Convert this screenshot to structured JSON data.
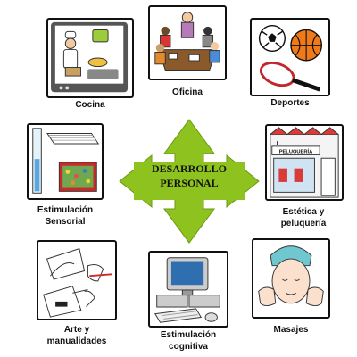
{
  "center": {
    "line1": "DESARROLLO",
    "line2": "PERSONAL",
    "arrow_color": "#8dc21f"
  },
  "areas": {
    "cocina": "Cocina",
    "oficina": "Oficina",
    "deportes": "Deportes",
    "estimulacion_sensorial": {
      "line1": "Estimulación",
      "line2": "Sensorial"
    },
    "estetica": {
      "line1": "Estética y",
      "line2": "peluquería",
      "sign": "PELUQUERÍA"
    },
    "arte": {
      "line1": "Arte y",
      "line2": "manualidades"
    },
    "estimulacion_cognitiva": {
      "line1": "Estimulación",
      "line2": "cognitiva"
    },
    "masajes": "Masajes"
  },
  "icons": {
    "cocina": "kitchen-tv-icon",
    "oficina": "office-meeting-icon",
    "deportes": "sports-balls-icon",
    "sensorial": "sensory-room-icon",
    "estetica": "hair-salon-icon",
    "arte": "art-crafts-icon",
    "cognitiva": "computer-icon",
    "masajes": "face-massage-icon"
  }
}
